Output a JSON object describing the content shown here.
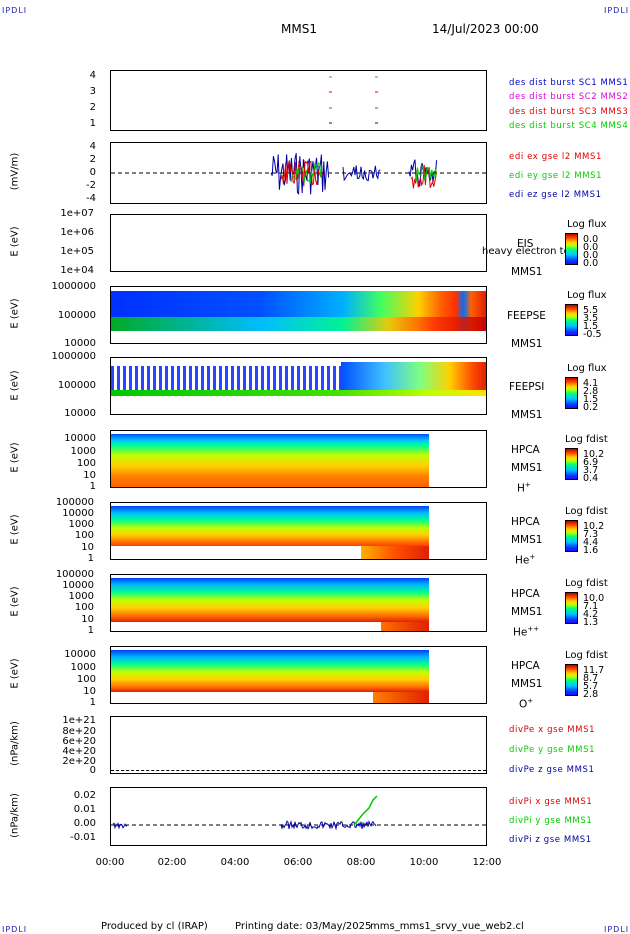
{
  "header": {
    "corner_tl": "IPDLI",
    "corner_tr": "IPDLI",
    "corner_bl": "IPDLI",
    "corner_br": "IPDLI",
    "title": "MMS1",
    "date": "14/Jul/2023 00:00"
  },
  "footer": {
    "produced": "Produced by cl (IRAP)",
    "printing": "Printing date: 03/May/2025",
    "script": "mms_mms1_srvy_vue_web2.cl"
  },
  "colors": {
    "blue": "#0000cc",
    "magenta": "#e000e0",
    "red": "#e00000",
    "green": "#00cc00",
    "darkblue": "#0000a0"
  },
  "chart_data": [
    {
      "type": "line",
      "id": "des_dist_burst",
      "ylabel": "",
      "ylim": [
        0.5,
        4.5
      ],
      "yticks": [
        "4",
        "3",
        "2",
        "1"
      ],
      "series": [
        {
          "name": "des dist burst SC1 MMS1",
          "color": "#0000cc"
        },
        {
          "name": "des dist burst SC2 MMS2",
          "color": "#e000e0"
        },
        {
          "name": "des dist burst SC3 MMS3",
          "color": "#e00000"
        },
        {
          "name": "des dist burst SC4 MMS4",
          "color": "#00cc00"
        }
      ]
    },
    {
      "type": "line",
      "id": "edi_e_gse",
      "ylabel": "(mV/m)",
      "ylim": [
        -4,
        4
      ],
      "yticks": [
        "4",
        "2",
        "0",
        "-2",
        "-4"
      ],
      "series": [
        {
          "name": "edi ex gse l2 MMS1",
          "color": "#e00000"
        },
        {
          "name": "edi ey gse l2 MMS1",
          "color": "#00cc00"
        },
        {
          "name": "edi ez gse l2 MMS1",
          "color": "#0000a0"
        }
      ]
    },
    {
      "type": "heatmap",
      "id": "eis",
      "ylabel": "E (eV)",
      "yticks": [
        "1e+07",
        "1e+06",
        "1e+05",
        "1e+04"
      ],
      "instrument": [
        "EIS",
        "MMS1"
      ],
      "overlay_text": "heavy electron to",
      "cbar_label": "Log flux",
      "cbar_values": [
        "0.0",
        "0.0",
        "0.0",
        "0.0"
      ]
    },
    {
      "type": "heatmap",
      "id": "feepse",
      "ylabel": "E (eV)",
      "yticks": [
        "1000000",
        "100000",
        "10000"
      ],
      "instrument": [
        "FEEPSE",
        "MMS1"
      ],
      "cbar_label": "Log flux",
      "cbar_values": [
        "5.5",
        "3.5",
        "1.5",
        "-0.5"
      ]
    },
    {
      "type": "heatmap",
      "id": "feepsi",
      "ylabel": "E (eV)",
      "yticks": [
        "1000000",
        "100000",
        "10000"
      ],
      "instrument": [
        "FEEPSI",
        "MMS1"
      ],
      "cbar_label": "Log flux",
      "cbar_values": [
        "4.1",
        "2.8",
        "1.5",
        "0.2"
      ]
    },
    {
      "type": "heatmap",
      "id": "hpca_h",
      "ylabel": "E (eV)",
      "yticks": [
        "10000",
        "1000",
        "100",
        "10",
        "1"
      ],
      "instrument": [
        "HPCA",
        "MMS1",
        "H",
        "+"
      ],
      "cbar_label": "Log fdist",
      "cbar_values": [
        "10.2",
        "6.9",
        "3.7",
        "0.4"
      ]
    },
    {
      "type": "heatmap",
      "id": "hpca_he",
      "ylabel": "E (eV)",
      "yticks": [
        "100000",
        "10000",
        "1000",
        "100",
        "10",
        "1"
      ],
      "instrument": [
        "HPCA",
        "MMS1",
        "He",
        "+"
      ],
      "cbar_label": "Log fdist",
      "cbar_values": [
        "10.2",
        "7.3",
        "4.4",
        "1.6"
      ]
    },
    {
      "type": "heatmap",
      "id": "hpca_hepp",
      "ylabel": "E (eV)",
      "yticks": [
        "100000",
        "10000",
        "1000",
        "100",
        "10",
        "1"
      ],
      "instrument": [
        "HPCA",
        "MMS1",
        "He",
        "++"
      ],
      "cbar_label": "Log fdist",
      "cbar_values": [
        "10.0",
        "7.1",
        "4.2",
        "1.3"
      ]
    },
    {
      "type": "heatmap",
      "id": "hpca_o",
      "ylabel": "E (eV)",
      "yticks": [
        "10000",
        "1000",
        "100",
        "10",
        "1"
      ],
      "instrument": [
        "HPCA",
        "MMS1",
        "O",
        "+"
      ],
      "cbar_label": "Log fdist",
      "cbar_values": [
        "11.7",
        "8.7",
        "5.7",
        "2.8"
      ]
    },
    {
      "type": "line",
      "id": "divpe",
      "ylabel": "(nPa/km)",
      "ylim": [
        0,
        1e+21
      ],
      "yticks": [
        "1e+21",
        "8e+20",
        "6e+20",
        "4e+20",
        "2e+20",
        "0"
      ],
      "series": [
        {
          "name": "divPe x gse MMS1",
          "color": "#e00000"
        },
        {
          "name": "divPe y gse MMS1",
          "color": "#00cc00"
        },
        {
          "name": "divPe z gse MMS1",
          "color": "#0000a0"
        }
      ]
    },
    {
      "type": "line",
      "id": "divpi",
      "ylabel": "(nPa/km)",
      "ylim": [
        -0.015,
        0.025
      ],
      "yticks": [
        "0.02",
        "0.01",
        "0.00",
        "-0.01"
      ],
      "series": [
        {
          "name": "divPi x gse MMS1",
          "color": "#e00000"
        },
        {
          "name": "divPi y gse MMS1",
          "color": "#00cc00"
        },
        {
          "name": "divPi z gse MMS1",
          "color": "#0000a0"
        }
      ]
    }
  ],
  "xaxis": {
    "labels": [
      "00:00",
      "02:00",
      "04:00",
      "06:00",
      "08:00",
      "10:00",
      "12:00"
    ]
  }
}
